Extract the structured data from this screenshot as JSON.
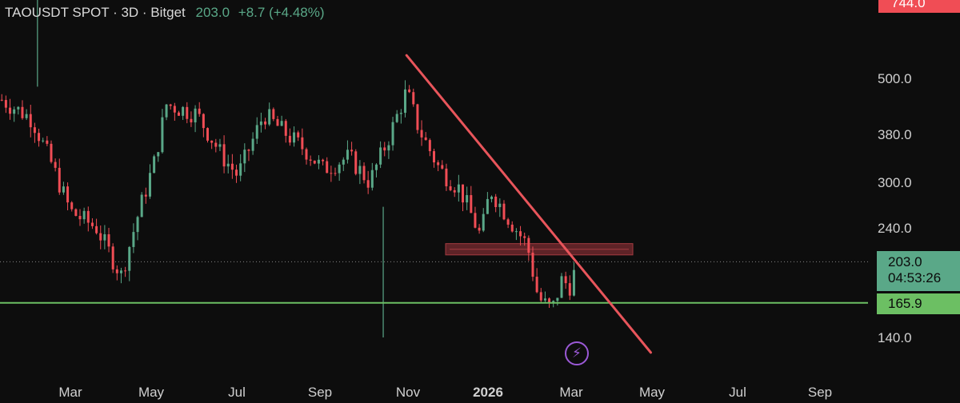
{
  "header": {
    "symbol": "TAOUSDT SPOT · 3D · Bitget",
    "price": "203.0",
    "change": "+8.7 (+4.48%)"
  },
  "colors": {
    "background": "#0d0d0d",
    "up": "#5aa888",
    "down": "#f04d55",
    "trendline": "#e8555b",
    "support": "#6cbf63",
    "resistance_zone": "#7a2b30",
    "axis_text": "#d0d0d0"
  },
  "badges": {
    "top": "744.0",
    "price": "203.0",
    "countdown": "04:53:26",
    "support": "165.9"
  },
  "icons": {
    "bolt": "lightning-bolt-icon"
  },
  "chart_data": {
    "type": "candlestick",
    "scale": "log",
    "y_ticks": [
      "500.0",
      "380.0",
      "300.0",
      "240.0",
      "140.0"
    ],
    "x_ticks": [
      "Mar",
      "May",
      "Jul",
      "Sep",
      "Nov",
      "2026",
      "Mar",
      "May",
      "Jul",
      "Sep"
    ],
    "close_path": [
      [
        "2025-01-10",
        450
      ],
      [
        "2025-02-01",
        410
      ],
      [
        "2025-02-15",
        330
      ],
      [
        "2025-03-01",
        260
      ],
      [
        "2025-03-20",
        240
      ],
      [
        "2025-04-07",
        190
      ],
      [
        "2025-04-20",
        260
      ],
      [
        "2025-05-01",
        330
      ],
      [
        "2025-05-10",
        440
      ],
      [
        "2025-06-01",
        420
      ],
      [
        "2025-06-20",
        340
      ],
      [
        "2025-07-01",
        310
      ],
      [
        "2025-07-20",
        420
      ],
      [
        "2025-08-01",
        390
      ],
      [
        "2025-08-20",
        350
      ],
      [
        "2025-09-01",
        320
      ],
      [
        "2025-09-20",
        340
      ],
      [
        "2025-10-05",
        300
      ],
      [
        "2025-10-20",
        380
      ],
      [
        "2025-11-01",
        470
      ],
      [
        "2025-11-10",
        390
      ],
      [
        "2025-11-25",
        320
      ],
      [
        "2025-12-10",
        290
      ],
      [
        "2025-12-25",
        230
      ],
      [
        "2026-01-01",
        290
      ],
      [
        "2026-01-15",
        250
      ],
      [
        "2026-01-28",
        220
      ],
      [
        "2026-02-05",
        170
      ],
      [
        "2026-02-15",
        160
      ],
      [
        "2026-02-22",
        185
      ],
      [
        "2026-03-01",
        180
      ],
      [
        "2026-03-05",
        203
      ]
    ],
    "support_level": 165.9,
    "current_price": 203.0,
    "resistance_zone": [
      210,
      222
    ],
    "trendline": [
      [
        "2025-11-01",
        560
      ],
      [
        "2026-04-28",
        130
      ]
    ],
    "wick_extremes": [
      [
        "2025-10-15",
        140
      ],
      [
        "2025-02-05",
        480
      ]
    ]
  }
}
